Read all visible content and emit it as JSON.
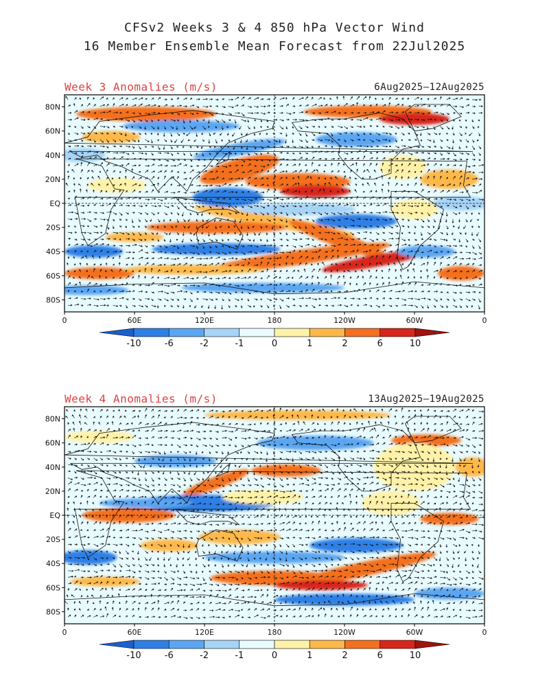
{
  "title": {
    "line1": "CFSv2 Weeks 3 & 4 850 hPa Vector Wind",
    "line2": "16 Member Ensemble Mean Forecast from 22Jul2025"
  },
  "lat_labels": [
    "80N",
    "60N",
    "40N",
    "20N",
    "EQ",
    "20S",
    "40S",
    "60S",
    "80S"
  ],
  "lon_labels": [
    "0",
    "60E",
    "120E",
    "180",
    "120W",
    "60W",
    "0"
  ],
  "colorbar": {
    "labels": [
      "-10",
      "-6",
      "-2",
      "-1",
      "0",
      "1",
      "2",
      "6",
      "10"
    ],
    "colors": [
      "#1c5fcc",
      "#2f80e6",
      "#5aa6f2",
      "#a6d4f7",
      "#e8fbff",
      "#fff2a8",
      "#fdb84a",
      "#f4701e",
      "#d8261a",
      "#a0120e"
    ]
  },
  "panels": [
    {
      "label": "Week 3 Anomalies (m/s)",
      "dates": "6Aug2025—12Aug2025"
    },
    {
      "label": "Week 4 Anomalies (m/s)",
      "dates": "13Aug2025—19Aug2025"
    }
  ],
  "colors": {
    "label_red": "#e04040",
    "land_outline": "#111111",
    "vector": "#111111",
    "background_field": "#e8fbff"
  }
}
